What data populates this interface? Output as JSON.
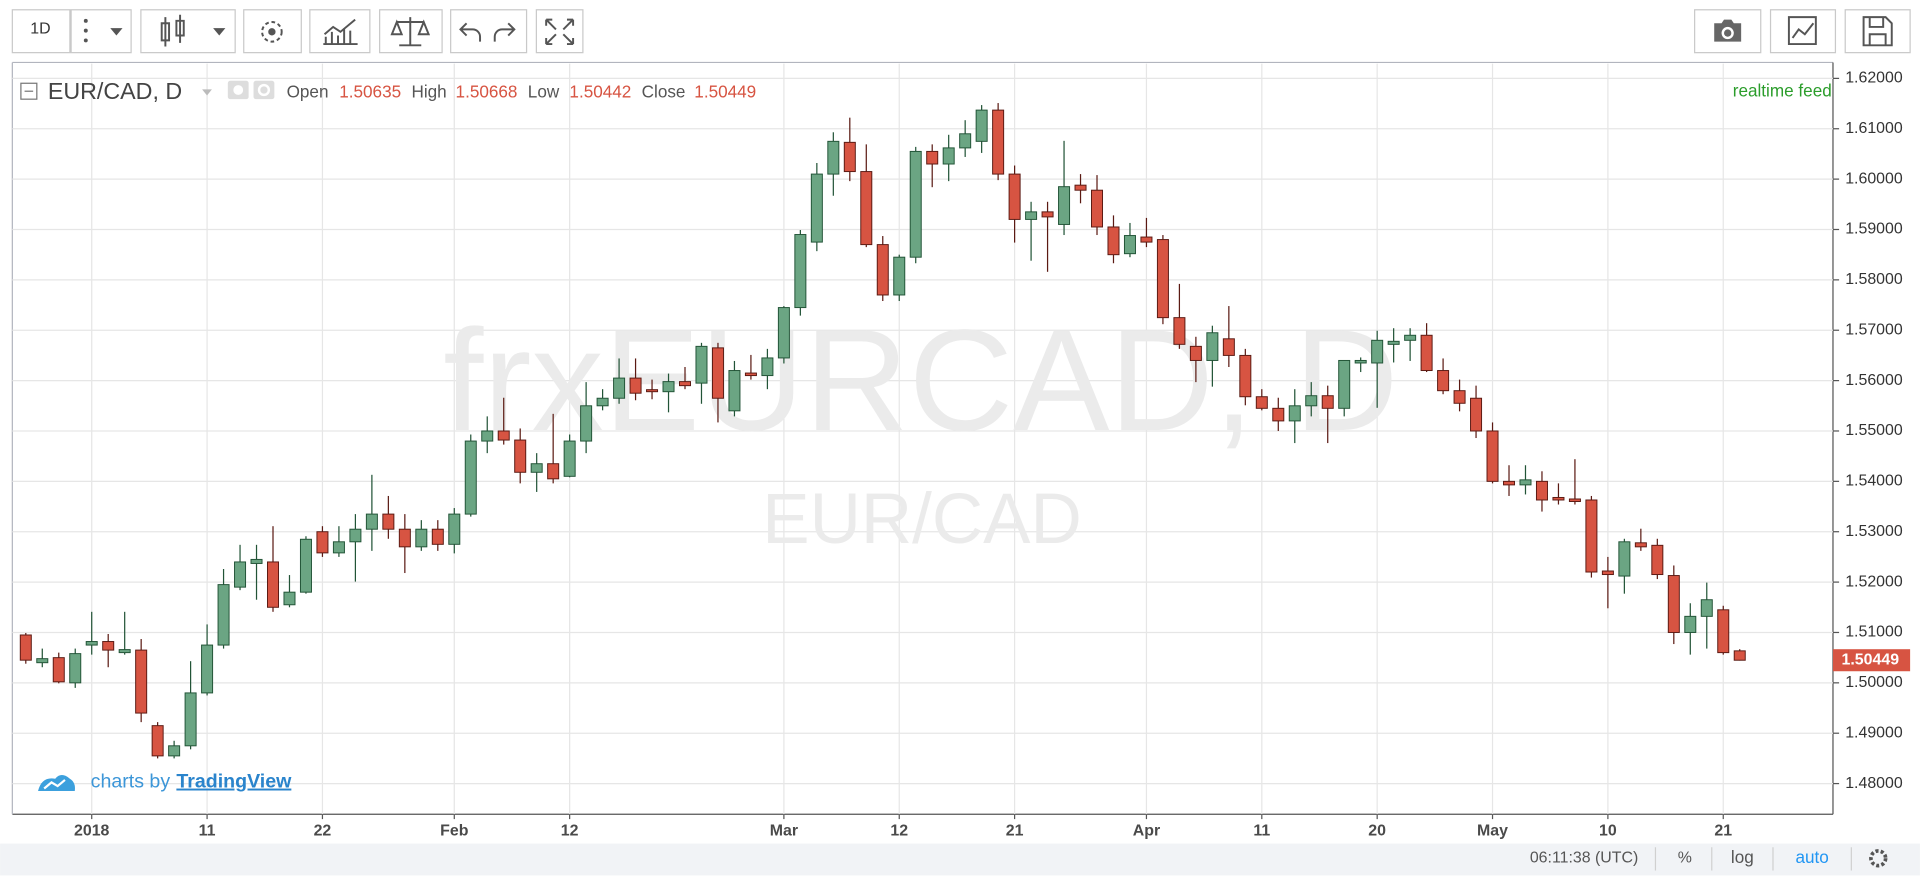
{
  "chart_data": {
    "type": "candlestick",
    "title": "EUR/CAD, D",
    "watermark_symbol": "frxEURCAD, D",
    "watermark_name": "EUR/CAD",
    "categories": [
      null,
      null,
      null,
      null,
      "2018",
      null,
      null,
      null,
      null,
      null,
      null,
      "11",
      null,
      null,
      null,
      null,
      null,
      null,
      "22",
      null,
      null,
      null,
      null,
      null,
      null,
      null,
      "Feb",
      null,
      null,
      null,
      null,
      null,
      null,
      "12",
      null,
      null,
      null,
      null,
      null,
      null,
      null,
      null,
      null,
      null,
      null,
      null,
      "Mar",
      null,
      null,
      null,
      null,
      null,
      null,
      "12",
      null,
      null,
      null,
      null,
      null,
      null,
      "21",
      null,
      null,
      null,
      null,
      null,
      null,
      null,
      "Apr",
      null,
      null,
      null,
      null,
      null,
      null,
      "11",
      null,
      null,
      null,
      null,
      null,
      null,
      "20",
      null,
      null,
      null,
      null,
      null,
      null,
      "May",
      null,
      null,
      null,
      null,
      null,
      null,
      "10",
      null,
      null,
      null,
      null,
      null,
      null,
      "21",
      null
    ],
    "open": [
      1.5095,
      1.504,
      1.505,
      1.5,
      1.5075,
      1.5082,
      1.506,
      1.5065,
      1.4915,
      1.4855,
      1.4875,
      1.498,
      1.5075,
      1.519,
      1.5237,
      1.524,
      1.5155,
      1.518,
      1.53,
      1.5258,
      1.528,
      1.5305,
      1.5335,
      1.5305,
      1.527,
      1.5305,
      1.5275,
      1.5335,
      1.548,
      1.55,
      1.5482,
      1.5418,
      1.5435,
      1.541,
      1.548,
      1.555,
      1.5565,
      1.5605,
      1.5582,
      1.5578,
      1.5598,
      1.5595,
      1.5665,
      1.554,
      1.5615,
      1.561,
      1.5645,
      1.5745,
      1.5875,
      1.601,
      1.6073,
      1.6015,
      1.587,
      1.577,
      1.5845,
      1.6055,
      1.603,
      1.6062,
      1.6075,
      1.6137,
      1.601,
      1.592,
      1.5935,
      1.591,
      1.5988,
      1.5978,
      1.5905,
      1.5852,
      1.5885,
      1.588,
      1.5725,
      1.5668,
      1.564,
      1.5683,
      1.565,
      1.5568,
      1.5545,
      1.552,
      1.555,
      1.557,
      1.5545,
      1.5635,
      1.5635,
      1.5672,
      1.568,
      1.569,
      1.562,
      1.558,
      1.5565,
      1.55,
      1.54,
      1.5393,
      1.54,
      1.5368,
      1.5365,
      1.5363,
      1.5222,
      1.5212,
      1.5278,
      1.5273,
      1.5213,
      1.51,
      1.5132,
      1.5145,
      1.50635
    ],
    "high": [
      1.5099,
      1.5068,
      1.506,
      1.5068,
      1.5141,
      1.5097,
      1.5141,
      1.5087,
      1.4922,
      1.4885,
      1.5043,
      1.5116,
      1.5226,
      1.5274,
      1.5274,
      1.5311,
      1.5214,
      1.5291,
      1.5311,
      1.5311,
      1.5335,
      1.5413,
      1.5371,
      1.5335,
      1.5323,
      1.5323,
      1.5347,
      1.5493,
      1.5529,
      1.5566,
      1.5505,
      1.5456,
      1.5534,
      1.5493,
      1.5597,
      1.5583,
      1.5644,
      1.5644,
      1.5602,
      1.5614,
      1.5627,
      1.5675,
      1.5675,
      1.5639,
      1.5651,
      1.5663,
      1.5748,
      1.5899,
      1.6032,
      1.6093,
      1.6122,
      1.6069,
      1.5887,
      1.585,
      1.6064,
      1.6069,
      1.6088,
      1.6117,
      1.6147,
      1.6151,
      1.6027,
      1.5955,
      1.5955,
      1.6076,
      1.601,
      1.6008,
      1.5928,
      1.5913,
      1.5923,
      1.5889,
      1.5792,
      1.5687,
      1.5709,
      1.5748,
      1.5663,
      1.5583,
      1.5566,
      1.5583,
      1.5597,
      1.559,
      1.5639,
      1.5646,
      1.5699,
      1.5704,
      1.5704,
      1.5714,
      1.5644,
      1.5602,
      1.559,
      1.5517,
      1.5432,
      1.5432,
      1.542,
      1.5396,
      1.5444,
      1.5371,
      1.525,
      1.5286,
      1.5306,
      1.5286,
      1.5233,
      1.5158,
      1.5199,
      1.5153,
      1.50668
    ],
    "low": [
      1.5038,
      1.5031,
      1.4999,
      1.499,
      1.5056,
      1.5031,
      1.5056,
      1.4922,
      1.485,
      1.485,
      1.4868,
      1.4975,
      1.5068,
      1.5184,
      1.5165,
      1.5141,
      1.515,
      1.5177,
      1.525,
      1.525,
      1.5201,
      1.5262,
      1.5286,
      1.5218,
      1.5262,
      1.5262,
      1.5257,
      1.533,
      1.5456,
      1.5473,
      1.5396,
      1.5379,
      1.5396,
      1.5408,
      1.5456,
      1.5541,
      1.5554,
      1.5561,
      1.5563,
      1.5537,
      1.5583,
      1.5554,
      1.5517,
      1.5529,
      1.5602,
      1.5583,
      1.5634,
      1.5729,
      1.5857,
      1.5967,
      1.5996,
      1.5865,
      1.5758,
      1.5758,
      1.5833,
      1.5984,
      1.5996,
      1.6044,
      1.6052,
      1.5998,
      1.5874,
      1.5838,
      1.5816,
      1.5889,
      1.5952,
      1.5889,
      1.5833,
      1.5845,
      1.5865,
      1.5712,
      1.5663,
      1.5597,
      1.5588,
      1.5627,
      1.5551,
      1.5541,
      1.55,
      1.5476,
      1.5529,
      1.5476,
      1.5529,
      1.5617,
      1.5546,
      1.5636,
      1.5639,
      1.5617,
      1.5573,
      1.5539,
      1.5486,
      1.5396,
      1.5371,
      1.5374,
      1.534,
      1.5354,
      1.5354,
      1.5209,
      1.5148,
      1.5177,
      1.5262,
      1.5206,
      1.5077,
      1.5056,
      1.5068,
      1.5056,
      1.50442
    ],
    "close": [
      1.5045,
      1.5048,
      1.5002,
      1.5058,
      1.5082,
      1.5065,
      1.5066,
      1.494,
      1.4855,
      1.4875,
      1.498,
      1.5075,
      1.5195,
      1.524,
      1.5245,
      1.515,
      1.518,
      1.5285,
      1.5258,
      1.528,
      1.5305,
      1.5335,
      1.5305,
      1.527,
      1.5305,
      1.5275,
      1.5335,
      1.548,
      1.55,
      1.5482,
      1.5418,
      1.5435,
      1.5405,
      1.548,
      1.555,
      1.5565,
      1.5605,
      1.5575,
      1.5578,
      1.5598,
      1.559,
      1.5668,
      1.5565,
      1.562,
      1.561,
      1.5645,
      1.5745,
      1.589,
      1.601,
      1.6075,
      1.6015,
      1.587,
      1.577,
      1.5845,
      1.6055,
      1.603,
      1.6062,
      1.609,
      1.6137,
      1.601,
      1.592,
      1.5935,
      1.5925,
      1.5985,
      1.5978,
      1.5905,
      1.585,
      1.5888,
      1.5875,
      1.5725,
      1.5672,
      1.564,
      1.5695,
      1.565,
      1.5568,
      1.5545,
      1.552,
      1.555,
      1.557,
      1.5545,
      1.564,
      1.564,
      1.568,
      1.5678,
      1.569,
      1.562,
      1.558,
      1.5555,
      1.55,
      1.54,
      1.5393,
      1.5403,
      1.5363,
      1.5363,
      1.536,
      1.522,
      1.5215,
      1.528,
      1.527,
      1.5215,
      1.51,
      1.5132,
      1.5165,
      1.506,
      1.50449
    ],
    "ylim": [
      1.47392,
      1.62292
    ],
    "yticks": [
      {
        "value": 1.48,
        "label": "1.48000"
      },
      {
        "value": 1.49,
        "label": "1.49000"
      },
      {
        "value": 1.5,
        "label": "1.50000"
      },
      {
        "value": 1.51,
        "label": "1.51000"
      },
      {
        "value": 1.52,
        "label": "1.52000"
      },
      {
        "value": 1.53,
        "label": "1.53000"
      },
      {
        "value": 1.54,
        "label": "1.54000"
      },
      {
        "value": 1.55,
        "label": "1.55000"
      },
      {
        "value": 1.56,
        "label": "1.56000"
      },
      {
        "value": 1.57,
        "label": "1.57000"
      },
      {
        "value": 1.58,
        "label": "1.58000"
      },
      {
        "value": 1.59,
        "label": "1.59000"
      },
      {
        "value": 1.6,
        "label": "1.60000"
      },
      {
        "value": 1.61,
        "label": "1.61000"
      },
      {
        "value": 1.62,
        "label": "1.62000"
      }
    ],
    "grid": true,
    "up_color": "#6ba583",
    "up_border": "#225437",
    "down_color": "#d75442",
    "down_border": "#5b1a13"
  },
  "ui": {
    "interval": "1D",
    "ohlc_labels": [
      "Open",
      "High",
      "Low",
      "Close"
    ],
    "feed": "realtime feed",
    "branding_prefix": "charts by",
    "branding": "TradingView",
    "clock": "06:11:38 (UTC)",
    "scale_buttons": [
      "%",
      "log",
      "auto"
    ]
  }
}
